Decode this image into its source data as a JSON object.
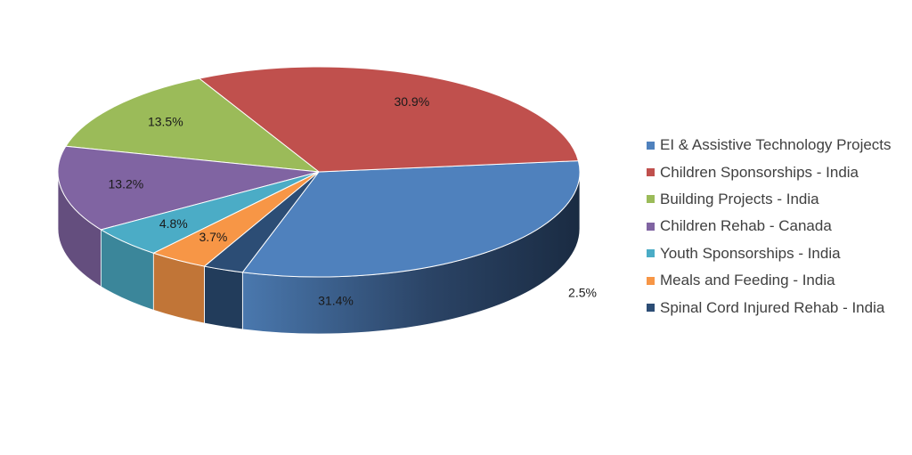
{
  "chart_data": {
    "type": "pie",
    "title": "",
    "labels": [
      "EI & Assistive Technology Projects",
      "Children Sponsorships - India",
      "Building Projects - India",
      "Children Rehab - Canada",
      "Youth Sponsorships - India",
      "Meals and Feeding - India",
      "Spinal Cord Injured Rehab - India"
    ],
    "values": [
      31.4,
      30.9,
      13.5,
      13.2,
      4.8,
      3.7,
      2.5
    ],
    "value_labels": [
      "31.4%",
      "30.9%",
      "13.5%",
      "13.2%",
      "4.8%",
      "3.7%",
      "2.5%"
    ],
    "colors": [
      "#4f81bd",
      "#c0504d",
      "#9bbb59",
      "#8064a2",
      "#4bacc6",
      "#f79646",
      "#2c4d75"
    ],
    "legend_position": "right",
    "style": "3d-pie"
  }
}
